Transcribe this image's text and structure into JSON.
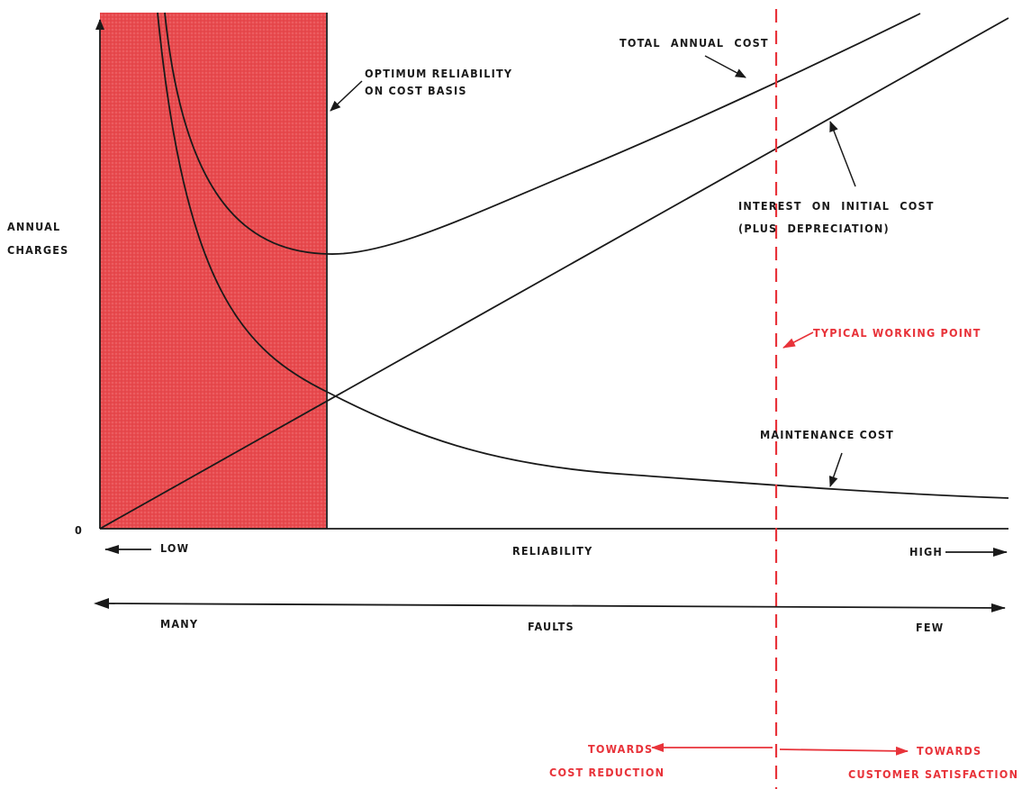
{
  "colors": {
    "shade": "#e84a4e",
    "red": "#e8333a",
    "ink": "#1a1a1a"
  },
  "labels": {
    "y_axis_line1": "ANNUAL",
    "y_axis_line2": "CHARGES",
    "origin": "0",
    "optimum_line1": "OPTIMUM RELIABILITY",
    "optimum_line2": "ON COST BASIS",
    "total_annual_cost": "TOTAL ANNUAL COST",
    "interest_line1": "INTEREST ON INITIAL COST",
    "interest_line2": "(PLUS DEPRECIATION)",
    "typical_working_point": "TYPICAL WORKING POINT",
    "maintenance_cost": "MAINTENANCE COST",
    "reliability_low": "LOW",
    "reliability": "RELIABILITY",
    "reliability_high": "HIGH",
    "faults_many": "MANY",
    "faults": "FAULTS",
    "faults_few": "FEW",
    "towards_left_line1": "TOWARDS",
    "towards_left_line2": "COST REDUCTION",
    "towards_right_line1": "TOWARDS",
    "towards_right_line2": "CUSTOMER SATISFACTION"
  }
}
